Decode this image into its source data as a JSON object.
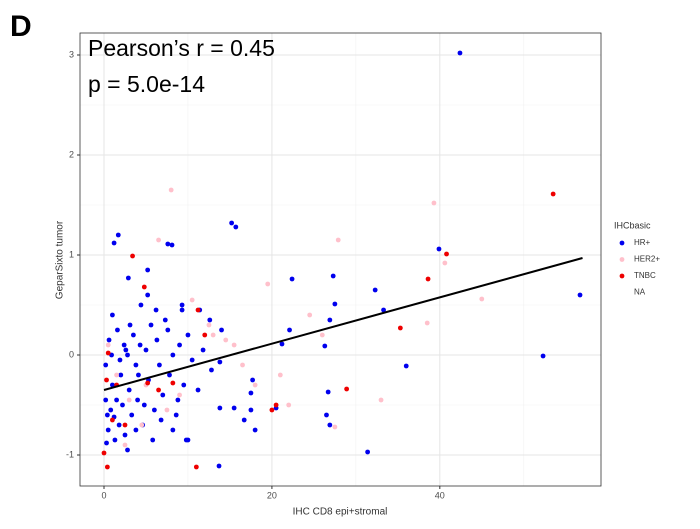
{
  "panel_label": "D",
  "chart_data": {
    "type": "scatter",
    "annotations": [
      "Pearson’s r = 0.45",
      "p = 5.0e-14"
    ],
    "x_label": "IHC CD8 epi+stromal",
    "y_label": "GeparSixto tumor",
    "legend_title": "IHCbasic",
    "legend": "right",
    "grid": true,
    "xlim": [
      -2.86,
      59.2
    ],
    "ylim": [
      -1.31,
      3.22
    ],
    "xticks": [
      0,
      20,
      40
    ],
    "yticks": [
      -1,
      0,
      1,
      2,
      3
    ],
    "xminor_ticks": [
      10,
      30,
      50
    ],
    "yminor_ticks": [
      -0.5,
      0.5,
      1.5,
      2.5
    ],
    "trend_line": {
      "color": "#000000",
      "x": [
        0,
        57
      ],
      "y": [
        -0.35,
        0.97
      ]
    },
    "series": [
      {
        "name": "HR+",
        "color": "#0000ee",
        "x": [
          42.4,
          15.2,
          15.7,
          1.7,
          1.2,
          39.9,
          56.7,
          52.3,
          31.4,
          36,
          32.3,
          33.3,
          22.4,
          27.3,
          27.5,
          26.9,
          26.3,
          26.7,
          26.5,
          26.9,
          22.1,
          21.2,
          20.5,
          17.7,
          17.5,
          17.5,
          18,
          16.7,
          15.5,
          13.7,
          13.8,
          13.8,
          14,
          12.6,
          11.4,
          11.2,
          10,
          9.3,
          9.3,
          7.6,
          8.1,
          5.2,
          2.9,
          0.2,
          0.4,
          0.3,
          0.8,
          1.0,
          1.2,
          1.5,
          1.8,
          2.0,
          2.2,
          2.5,
          2.8,
          3.0,
          3.3,
          3.5,
          3.8,
          4.0,
          4.3,
          4.6,
          5.0,
          5.3,
          5.6,
          6.0,
          6.3,
          6.6,
          7.0,
          7.3,
          7.8,
          8.2,
          8.6,
          9.0,
          9.5,
          10.0,
          10.5,
          1.0,
          0.6,
          1.6,
          2.4,
          0.5,
          1.3,
          2.8,
          3.8,
          4.8,
          5.8,
          6.8,
          0.2,
          1.9,
          3.1,
          4.4,
          5.2,
          6.2,
          7.6,
          8.8,
          11.8,
          12.8,
          9.8,
          8.2,
          0.9,
          2.6,
          4.1
        ],
        "y": [
          3.02,
          1.32,
          1.28,
          1.2,
          1.12,
          1.06,
          0.6,
          -0.01,
          -0.97,
          -0.11,
          0.65,
          0.45,
          0.76,
          0.79,
          0.51,
          0.35,
          0.09,
          -0.37,
          -0.6,
          -0.7,
          0.25,
          0.11,
          -0.53,
          -0.25,
          -0.38,
          -0.55,
          -0.75,
          -0.65,
          -0.53,
          -1.11,
          -0.53,
          -0.07,
          0.25,
          0.35,
          0.45,
          -0.35,
          -0.85,
          0.45,
          0.5,
          1.11,
          1.1,
          0.85,
          0.77,
          -0.45,
          -0.6,
          -0.88,
          -0.55,
          -0.3,
          -0.62,
          -0.45,
          -0.7,
          -0.2,
          -0.5,
          -0.8,
          0.0,
          -0.35,
          -0.6,
          0.2,
          -0.1,
          -0.45,
          0.1,
          -0.7,
          0.05,
          -0.25,
          0.3,
          -0.55,
          0.15,
          -0.1,
          -0.4,
          0.35,
          -0.2,
          0.0,
          -0.6,
          0.1,
          -0.3,
          0.2,
          -0.05,
          0.4,
          0.15,
          0.25,
          0.1,
          -0.75,
          -0.85,
          -0.95,
          -0.75,
          -0.5,
          -0.85,
          -0.65,
          -0.1,
          -0.05,
          0.3,
          0.5,
          0.6,
          0.45,
          0.25,
          -0.45,
          0.05,
          -0.15,
          -0.85,
          -0.75,
          0.0,
          0.05,
          -0.2
        ]
      },
      {
        "name": "HER2+",
        "color": "#ffc0cb",
        "x": [
          8,
          39.3,
          40.6,
          45,
          27.9,
          19.5,
          38.5,
          27.5,
          22,
          26,
          21,
          3,
          5,
          6.5,
          1.5,
          4.5,
          9,
          12.5,
          15.5,
          16.5,
          10.5,
          0.5,
          2.5,
          7.5,
          13,
          14.5,
          18,
          33,
          24.5
        ],
        "y": [
          1.65,
          1.52,
          0.92,
          0.56,
          1.15,
          0.71,
          0.32,
          -0.72,
          -0.5,
          0.2,
          -0.2,
          -0.45,
          -0.3,
          1.15,
          -0.2,
          -0.7,
          -0.4,
          0.3,
          0.1,
          -0.1,
          0.55,
          0.1,
          -0.9,
          -0.55,
          0.2,
          0.15,
          -0.3,
          -0.45,
          0.4
        ]
      },
      {
        "name": "TNBC",
        "color": "#ee0000",
        "x": [
          53.5,
          40.8,
          38.6,
          35.3,
          28.9,
          20.5,
          20,
          11.2,
          12,
          3.4,
          4.8,
          0.5,
          0.3,
          0.4,
          0,
          2.5,
          8.2,
          11,
          5.2,
          6.5,
          1.0,
          1.5
        ],
        "y": [
          1.61,
          1.01,
          0.76,
          0.27,
          -0.34,
          -0.5,
          -0.55,
          0.45,
          0.2,
          0.99,
          0.68,
          0.02,
          -0.25,
          -1.12,
          -0.98,
          -0.7,
          -0.28,
          -1.12,
          -0.28,
          -0.35,
          -0.65,
          -0.3
        ]
      },
      {
        "name": "NA",
        "color": "#ffffff",
        "x": [],
        "y": []
      }
    ]
  }
}
